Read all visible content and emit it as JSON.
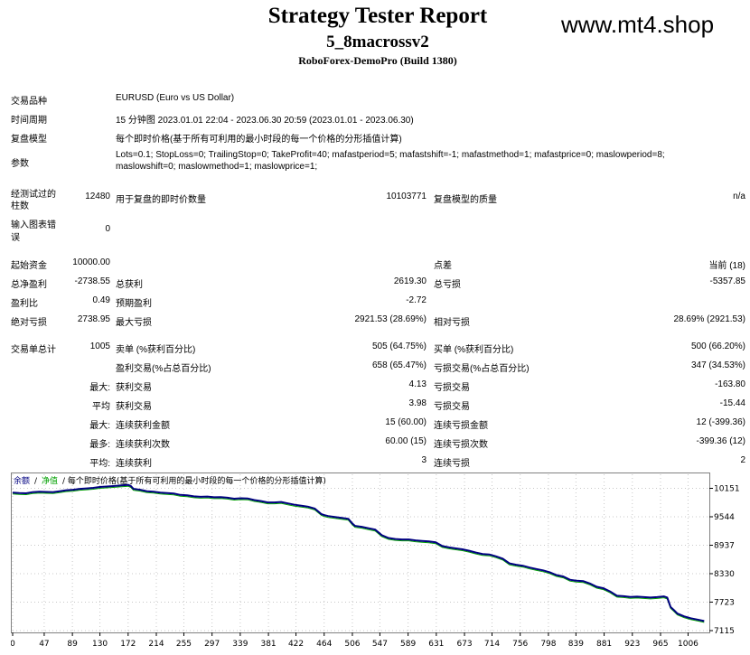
{
  "header": {
    "title": "Strategy Tester Report",
    "ea_name": "5_8macrossv2",
    "server": "RoboForex-DemoPro (Build 1380)",
    "watermark": "www.mt4.shop"
  },
  "info": {
    "symbol_label": "交易品种",
    "symbol_value": "EURUSD (Euro vs US Dollar)",
    "period_label": "时间周期",
    "period_value": "15 分钟图 2023.01.01 22:04 - 2023.06.30 20:59 (2023.01.01 - 2023.06.30)",
    "model_label": "复盘模型",
    "model_value": "每个即时价格(基于所有可利用的最小时段的每一个价格的分形插值计算)",
    "params_label": "参数",
    "params_line1": "Lots=0.1; StopLoss=0; TrailingStop=0; TakeProfit=40; mafastperiod=5; mafastshift=-1; mafastmethod=1; mafastprice=0; maslowperiod=8;",
    "params_line2": "maslowshift=0; maslowmethod=1; maslowprice=1;"
  },
  "bars": {
    "label_line1": "经测试过的",
    "label_line2": "柱数",
    "value": "12480",
    "ticks_label": "用于复盘的即时价数量",
    "ticks_value": "10103771",
    "quality_label": "复盘模型的质量",
    "quality_value": "n/a",
    "errors_label_line1": "输入图表错",
    "errors_label_line2": "误",
    "errors_value": "0"
  },
  "summary": {
    "deposit_label": "起始资金",
    "deposit_value": "10000.00",
    "spread_label": "点差",
    "spread_value": "当前 (18)",
    "net_label": "总净盈利",
    "net_value": "-2738.55",
    "gross_profit_label": "总获利",
    "gross_profit_value": "2619.30",
    "gross_loss_label": "总亏损",
    "gross_loss_value": "-5357.85",
    "pf_label": "盈利比",
    "pf_value": "0.49",
    "expected_label": "预期盈利",
    "expected_value": "-2.72",
    "abs_dd_label": "绝对亏损",
    "abs_dd_value": "2738.95",
    "max_dd_label": "最大亏损",
    "max_dd_value": "2921.53 (28.69%)",
    "rel_dd_label": "相对亏损",
    "rel_dd_value": "28.69% (2921.53)"
  },
  "trades": {
    "total_label": "交易单总计",
    "total_value": "1005",
    "short_label": "卖单 (%获利百分比)",
    "short_value": "505 (64.75%)",
    "long_label": "买单 (%获利百分比)",
    "long_value": "500 (66.20%)",
    "profit_trades_label": "盈利交易(%占总百分比)",
    "profit_trades_value": "658 (65.47%)",
    "loss_trades_label": "亏损交易(%占总百分比)",
    "loss_trades_value": "347 (34.53%)",
    "rows": [
      {
        "prefix": "最大:",
        "l_label": "获利交易",
        "l_value": "4.13",
        "r_label": "亏损交易",
        "r_value": "-163.80"
      },
      {
        "prefix": "平均",
        "l_label": "获利交易",
        "l_value": "3.98",
        "r_label": "亏损交易",
        "r_value": "-15.44"
      },
      {
        "prefix": "最大:",
        "l_label": "连续获利金额",
        "l_value": "15 (60.00)",
        "r_label": "连续亏损金额",
        "r_value": "12 (-399.36)"
      },
      {
        "prefix": "最多:",
        "l_label": "连续获利次数",
        "l_value": "60.00 (15)",
        "r_label": "连续亏损次数",
        "r_value": "-399.36 (12)"
      },
      {
        "prefix": "平均:",
        "l_label": "连续获利",
        "l_value": "3",
        "r_label": "连续亏损",
        "r_value": "2"
      }
    ]
  },
  "chart_data": {
    "type": "line",
    "caption_balance": "余额",
    "caption_sep": "/",
    "caption_equity": "净值",
    "caption_model": "/ 每个即时价格(基于所有可利用的最小时段的每一个价格的分形插值计算)",
    "x_ticks": [
      "0",
      "47",
      "89",
      "130",
      "172",
      "214",
      "255",
      "297",
      "339",
      "381",
      "422",
      "464",
      "506",
      "547",
      "589",
      "631",
      "673",
      "714",
      "756",
      "798",
      "839",
      "881",
      "923",
      "965",
      "1006"
    ],
    "y_ticks": [
      "10151",
      "9544",
      "8937",
      "8330",
      "7723",
      "7115"
    ],
    "xlim": [
      0,
      1035
    ],
    "ylim": [
      7115,
      10450
    ],
    "series": [
      {
        "color": "#000080",
        "x": [
          0,
          10,
          20,
          30,
          40,
          50,
          60,
          70,
          80,
          90,
          100,
          110,
          120,
          130,
          140,
          150,
          160,
          172,
          176,
          180,
          190,
          200,
          210,
          220,
          230,
          240,
          250,
          260,
          270,
          280,
          290,
          300,
          310,
          320,
          330,
          340,
          350,
          360,
          370,
          380,
          390,
          400,
          410,
          420,
          430,
          440,
          450,
          460,
          464,
          470,
          480,
          490,
          500,
          506,
          510,
          520,
          530,
          540,
          550,
          560,
          570,
          580,
          590,
          600,
          610,
          620,
          630,
          640,
          650,
          660,
          670,
          680,
          690,
          700,
          710,
          720,
          730,
          740,
          750,
          760,
          770,
          780,
          790,
          800,
          810,
          820,
          830,
          840,
          850,
          860,
          870,
          880,
          890,
          900,
          910,
          920,
          930,
          940,
          950,
          960,
          970,
          975,
          980,
          985,
          990,
          1000,
          1010,
          1020,
          1030
        ],
        "y": [
          10060,
          10050,
          10045,
          10070,
          10080,
          10075,
          10070,
          10090,
          10110,
          10120,
          10140,
          10150,
          10160,
          10180,
          10190,
          10200,
          10210,
          10225,
          10200,
          10140,
          10120,
          10090,
          10080,
          10060,
          10050,
          10040,
          10010,
          10000,
          9980,
          9970,
          9975,
          9960,
          9965,
          9950,
          9930,
          9940,
          9935,
          9900,
          9880,
          9850,
          9850,
          9860,
          9830,
          9800,
          9780,
          9760,
          9720,
          9600,
          9580,
          9560,
          9540,
          9520,
          9500,
          9400,
          9350,
          9330,
          9300,
          9270,
          9150,
          9090,
          9070,
          9060,
          9060,
          9040,
          9030,
          9020,
          9000,
          8920,
          8890,
          8870,
          8850,
          8820,
          8780,
          8750,
          8740,
          8700,
          8650,
          8550,
          8520,
          8500,
          8460,
          8430,
          8400,
          8360,
          8300,
          8270,
          8200,
          8180,
          8170,
          8120,
          8050,
          8020,
          7950,
          7860,
          7850,
          7835,
          7840,
          7830,
          7820,
          7830,
          7845,
          7820,
          7620,
          7550,
          7480,
          7420,
          7380,
          7350,
          7320
        ]
      }
    ]
  }
}
